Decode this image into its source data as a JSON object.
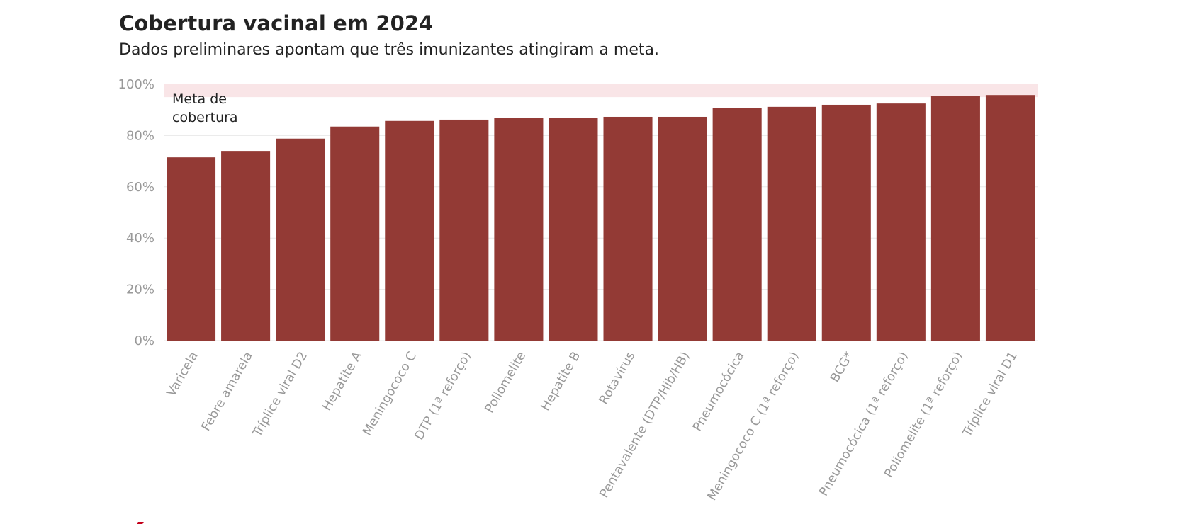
{
  "title": "Cobertura vacinal em 2024",
  "subtitle": "Dados preliminares apontam que três imunizantes atingiram a meta.",
  "colors": {
    "bar": "#933a35",
    "target_band": "#f9e5e7",
    "grid": "#e8e8e8",
    "axis_text": "#999999",
    "text": "#222222",
    "brand": "#c4001a"
  },
  "chart_data": {
    "type": "bar",
    "title": "Cobertura vacinal em 2024",
    "subtitle": "Dados preliminares apontam que três imunizantes atingiram a meta.",
    "xlabel": "",
    "ylabel": "",
    "categories": [
      "Varicela",
      "Febre amarela",
      "Tríplice viral D2",
      "Hepatite A",
      "Meningococo C",
      "DTP (1ª reforço)",
      "Poliomelite",
      "Hepatite B",
      "Rotavírus",
      "Pentavalente (DTP/Hib/HB)",
      "Pneumocócica",
      "Meningococo C (1ª reforço)",
      "BCG*",
      "Pneumocócica (1ª reforço)",
      "Poliomelite (1ª reforço)",
      "Tríplice viral D1"
    ],
    "values": [
      71.5,
      74.0,
      78.8,
      83.5,
      85.7,
      86.2,
      87.0,
      87.0,
      87.3,
      87.3,
      90.7,
      91.2,
      92.0,
      92.5,
      95.4,
      95.8
    ],
    "y_ticks": [
      "0%",
      "20%",
      "40%",
      "60%",
      "80%",
      "100%"
    ],
    "y_tick_values": [
      0,
      20,
      40,
      60,
      80,
      100
    ],
    "ylim": [
      0,
      100
    ],
    "grid": true,
    "legend": "none",
    "target_band": {
      "label_lines": [
        "Meta de",
        "cobertura"
      ],
      "from": 95,
      "to": 100
    }
  }
}
